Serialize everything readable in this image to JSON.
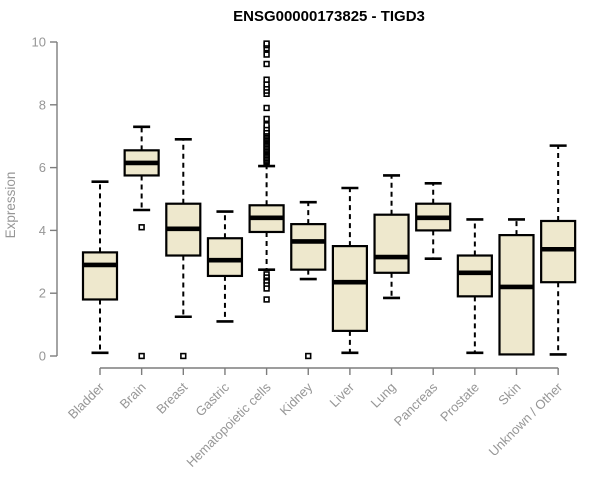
{
  "chart_data": {
    "type": "boxplot",
    "title": "ENSG00000173825 - TIGD3",
    "xlabel": "",
    "ylabel": "Expression",
    "ylim": [
      0,
      10
    ],
    "yticks": [
      0,
      2,
      4,
      6,
      8,
      10
    ],
    "grid": false,
    "legend": "none",
    "categories": [
      "Bladder",
      "Brain",
      "Breast",
      "Gastric",
      "Hematopoietic cells",
      "Kidney",
      "Liver",
      "Lung",
      "Pancreas",
      "Prostate",
      "Skin",
      "Unknown / Other"
    ],
    "series": [
      {
        "category": "Bladder",
        "whisker_low": 0.1,
        "q1": 1.8,
        "median": 2.9,
        "q3": 3.3,
        "whisker_high": 5.55,
        "outliers": []
      },
      {
        "category": "Brain",
        "whisker_low": 4.65,
        "q1": 5.75,
        "median": 6.15,
        "q3": 6.55,
        "whisker_high": 7.3,
        "outliers": [
          4.1,
          0.0
        ]
      },
      {
        "category": "Breast",
        "whisker_low": 1.25,
        "q1": 3.2,
        "median": 4.05,
        "q3": 4.85,
        "whisker_high": 6.9,
        "outliers": [
          0.0
        ]
      },
      {
        "category": "Gastric",
        "whisker_low": 1.1,
        "q1": 2.55,
        "median": 3.05,
        "q3": 3.75,
        "whisker_high": 4.6,
        "outliers": []
      },
      {
        "category": "Hematopoietic cells",
        "whisker_low": 2.75,
        "q1": 3.95,
        "median": 4.4,
        "q3": 4.8,
        "whisker_high": 6.05,
        "outliers": [
          6.15,
          6.2,
          6.25,
          6.3,
          6.35,
          6.4,
          6.45,
          6.5,
          6.55,
          6.6,
          6.65,
          6.7,
          6.75,
          6.8,
          6.85,
          6.9,
          6.95,
          7.0,
          7.05,
          7.1,
          7.15,
          7.25,
          7.35,
          7.55,
          7.9,
          8.35,
          8.45,
          8.55,
          8.65,
          8.8,
          9.3,
          9.6,
          9.8,
          9.9,
          9.95,
          2.6,
          2.5,
          2.4,
          2.35,
          2.25,
          2.15,
          1.8
        ]
      },
      {
        "category": "Kidney",
        "whisker_low": 2.45,
        "q1": 2.75,
        "median": 3.65,
        "q3": 4.2,
        "whisker_high": 4.9,
        "outliers": [
          0.0
        ]
      },
      {
        "category": "Liver",
        "whisker_low": 0.1,
        "q1": 0.8,
        "median": 2.35,
        "q3": 3.5,
        "whisker_high": 5.35,
        "outliers": []
      },
      {
        "category": "Lung",
        "whisker_low": 1.85,
        "q1": 2.65,
        "median": 3.15,
        "q3": 4.5,
        "whisker_high": 5.75,
        "outliers": []
      },
      {
        "category": "Pancreas",
        "whisker_low": 3.1,
        "q1": 4.0,
        "median": 4.4,
        "q3": 4.85,
        "whisker_high": 5.5,
        "outliers": []
      },
      {
        "category": "Prostate",
        "whisker_low": 0.1,
        "q1": 1.9,
        "median": 2.65,
        "q3": 3.2,
        "whisker_high": 4.35,
        "outliers": []
      },
      {
        "category": "Skin",
        "whisker_low": 0.05,
        "q1": 0.05,
        "median": 2.2,
        "q3": 3.85,
        "whisker_high": 4.35,
        "outliers": []
      },
      {
        "category": "Unknown / Other",
        "whisker_low": 0.05,
        "q1": 2.35,
        "median": 3.4,
        "q3": 4.3,
        "whisker_high": 6.7,
        "outliers": []
      }
    ],
    "colors": {
      "box_fill": "#EEE8CD",
      "box_border": "#000000",
      "median": "#000000",
      "whisker": "#000000",
      "outlier_stroke": "#000000",
      "outlier_fill": "#FFFFFF",
      "axis": "#7D7D7D",
      "tick_label": "#969696",
      "title": "#000000",
      "background": "#FFFFFF"
    }
  }
}
